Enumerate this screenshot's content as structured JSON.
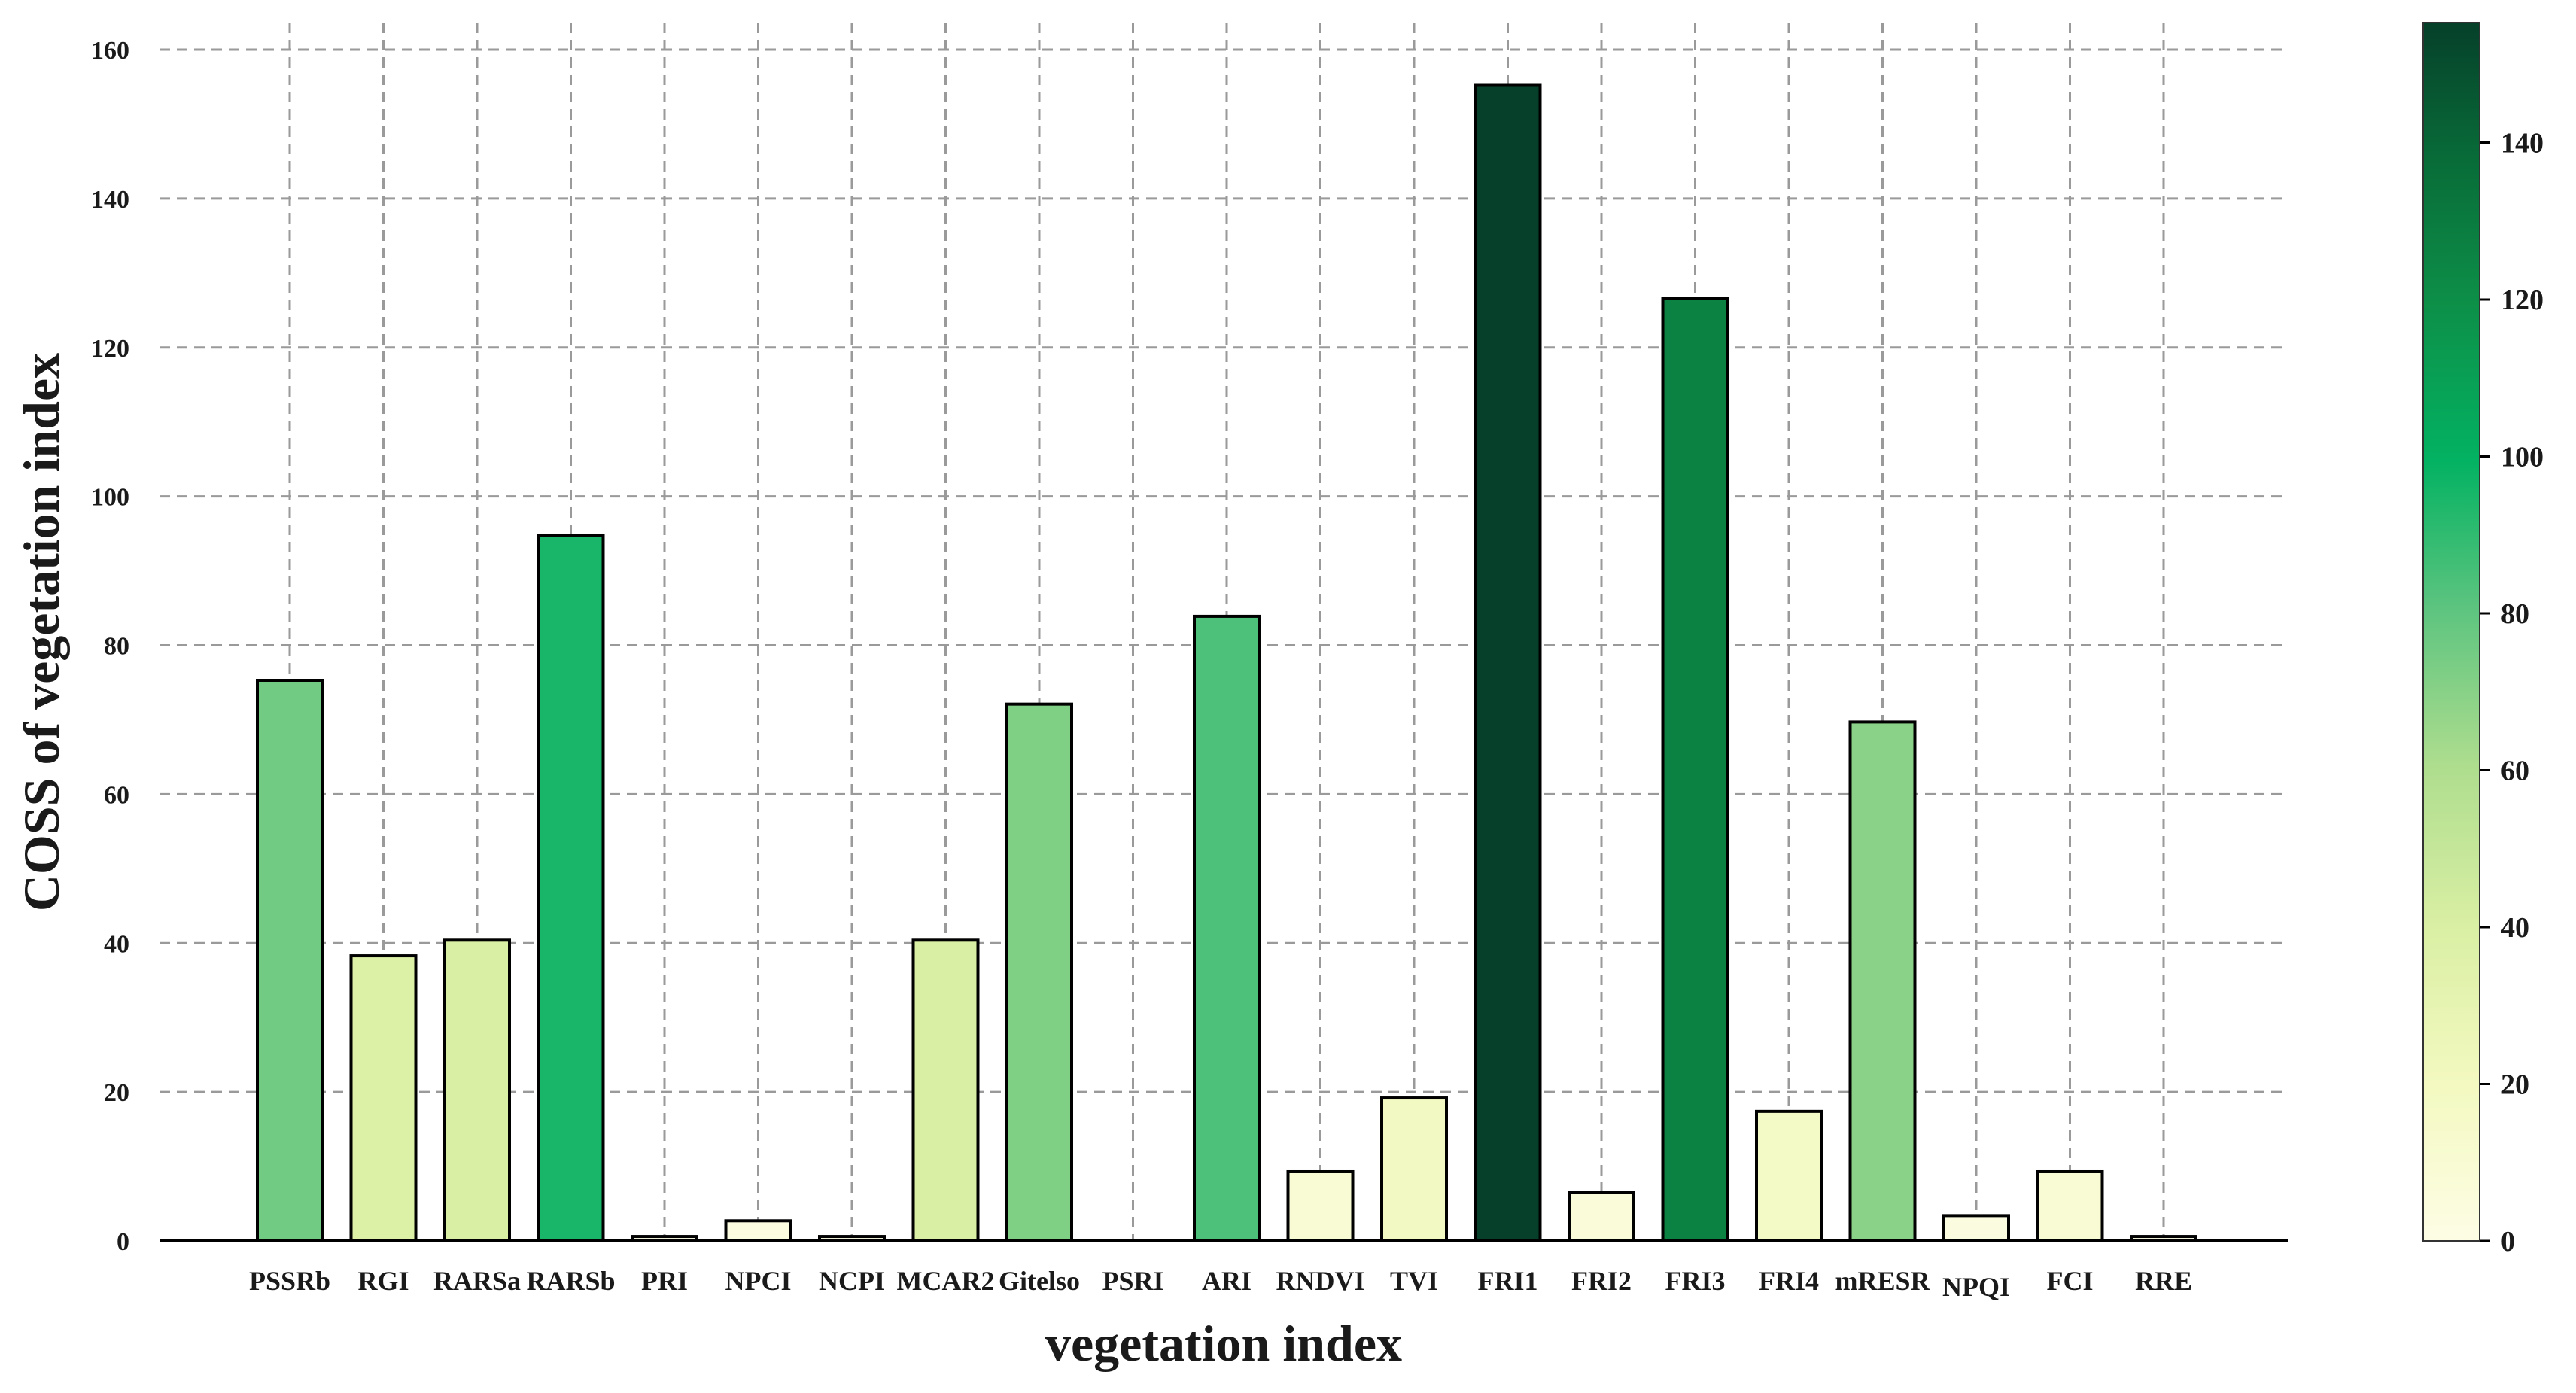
{
  "chart_data": {
    "type": "bar",
    "title": "",
    "xlabel": "vegetation index",
    "ylabel": "COSS of vegetation index",
    "ylim": [
      0,
      165
    ],
    "yticks": [
      0,
      20,
      40,
      60,
      80,
      100,
      120,
      140,
      160
    ],
    "grid": true,
    "categories": [
      "PSSRb",
      "RGI",
      "RARSa",
      "RARSb",
      "PRI",
      "NPCI",
      "NCPI",
      "MCAR2",
      "Gitelso",
      "PSRI",
      "ARI",
      "RNDVI",
      "TVI",
      "FRI1",
      "FRI2",
      "FRI3",
      "FRI4",
      "mRESR",
      "NPQI",
      "FCI",
      "RRE"
    ],
    "values": [
      75.3,
      38.3,
      40.4,
      94.8,
      0.6,
      2.7,
      0.6,
      40.4,
      72.1,
      0,
      83.9,
      9.3,
      19.2,
      155.3,
      6.5,
      126.6,
      17.4,
      69.7,
      3.4,
      9.3,
      0.6
    ],
    "colorbar": {
      "colormap": "Greens",
      "range": [
        0,
        155.3
      ],
      "ticks": [
        0,
        20,
        40,
        60,
        80,
        100,
        120,
        140
      ]
    }
  }
}
